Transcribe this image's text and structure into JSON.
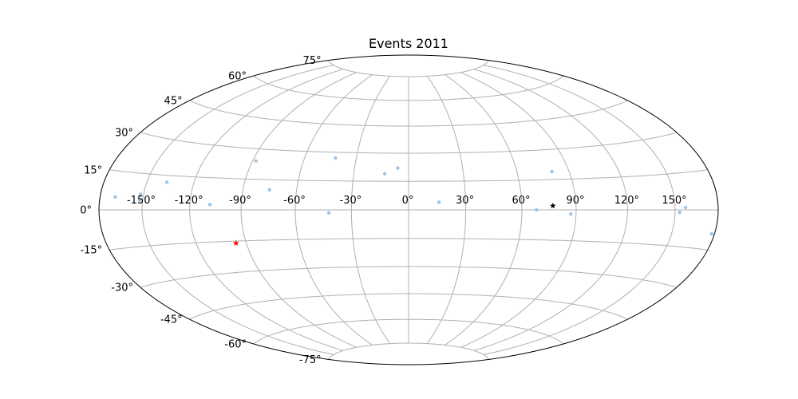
{
  "chart_data": {
    "type": "scatter",
    "projection": "hammer",
    "title": "Events 2011",
    "xlabel": "",
    "ylabel": "",
    "grid": true,
    "xlim": [
      -180,
      180
    ],
    "ylim": [
      -90,
      90
    ],
    "x_ticks": [
      -150,
      -120,
      -90,
      -60,
      -30,
      0,
      30,
      60,
      90,
      120,
      150
    ],
    "y_ticks": [
      -75,
      -60,
      -45,
      -30,
      -15,
      0,
      15,
      30,
      45,
      60,
      75
    ],
    "x_tick_labels": [
      "-150°",
      "-120°",
      "-90°",
      "-60°",
      "-30°",
      "0°",
      "30°",
      "60°",
      "90°",
      "120°",
      "150°"
    ],
    "y_tick_labels": [
      "-75°",
      "-60°",
      "-45°",
      "-30°",
      "-15°",
      "0°",
      "15°",
      "30°",
      "45°",
      "60°",
      "75°"
    ],
    "series": [
      {
        "marker": "dot",
        "color": "#9ec4e6",
        "points": [
          {
            "x": -169,
            "y": 5
          },
          {
            "x": -152,
            "y": 6.5
          },
          {
            "x": -152,
            "y": 4
          },
          {
            "x": -137,
            "y": 12
          },
          {
            "x": -108,
            "y": 2.5
          },
          {
            "x": -88,
            "y": 24
          },
          {
            "x": -75,
            "y": 10
          },
          {
            "x": -42,
            "y": 27
          },
          {
            "x": -13,
            "y": 19
          },
          {
            "x": -6,
            "y": 22
          },
          {
            "x": 16,
            "y": 4
          },
          {
            "x": -42,
            "y": -1.5
          },
          {
            "x": 68,
            "y": 0
          },
          {
            "x": 80,
            "y": 19
          },
          {
            "x": 87,
            "y": -2
          },
          {
            "x": 153,
            "y": -1
          },
          {
            "x": 157,
            "y": 1
          },
          {
            "x": 178,
            "y": -9
          }
        ]
      },
      {
        "marker": "star",
        "color": "#000000",
        "points": [
          {
            "x": 77,
            "y": 2
          }
        ]
      },
      {
        "marker": "star",
        "color": "#ff0000",
        "points": [
          {
            "x": -96,
            "y": -16
          }
        ]
      }
    ]
  }
}
